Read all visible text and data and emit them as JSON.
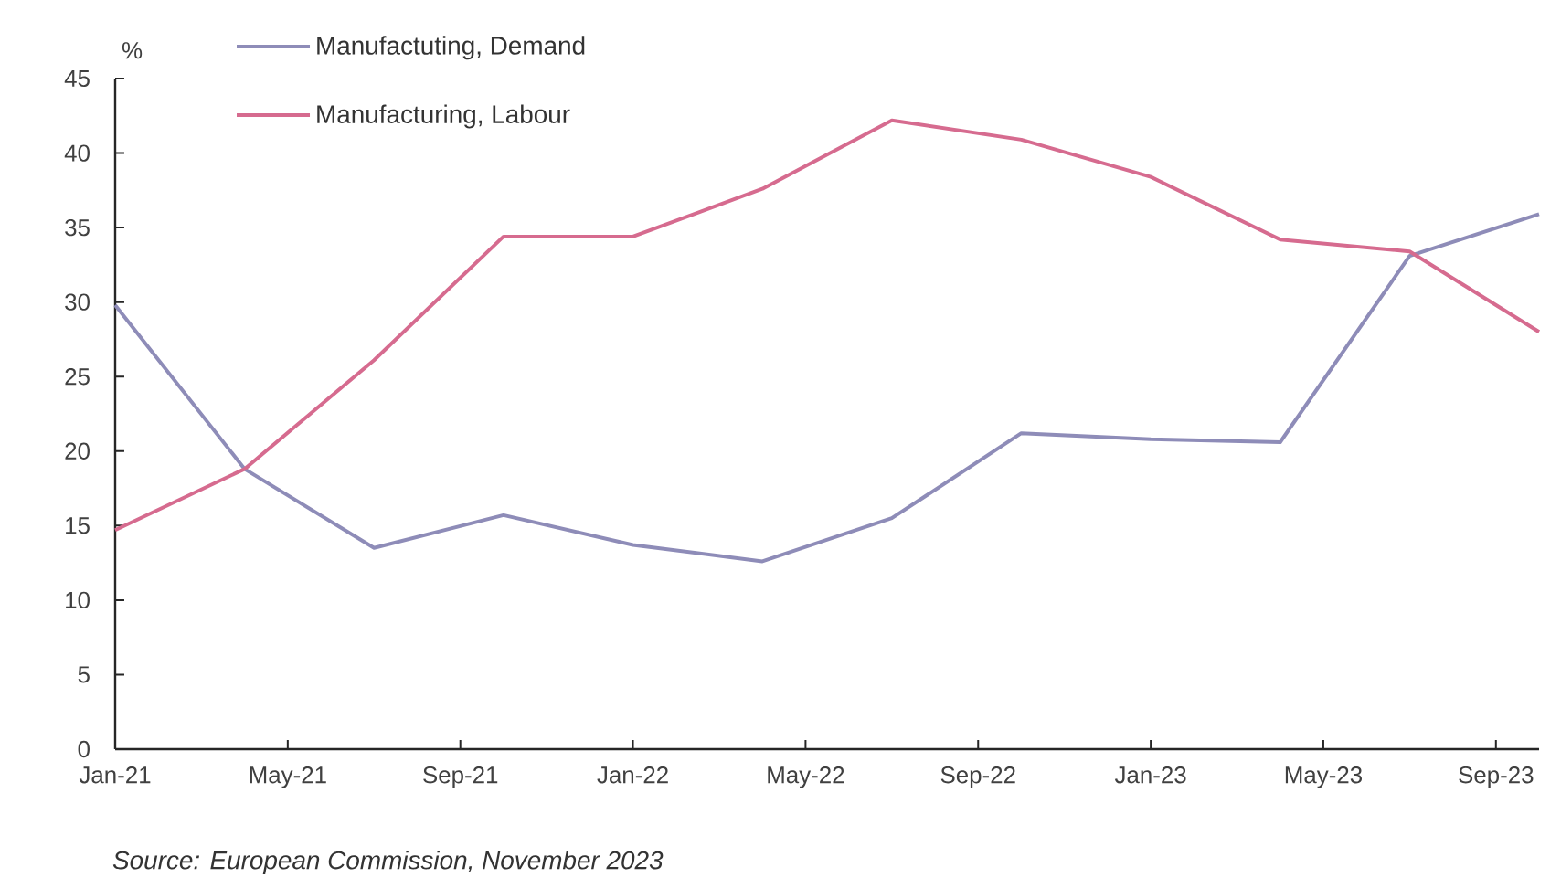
{
  "chart_data": {
    "type": "line",
    "ylabel": "%",
    "x": [
      "2021-01",
      "2021-04",
      "2021-07",
      "2021-10",
      "2022-01",
      "2022-04",
      "2022-07",
      "2022-10",
      "2023-01",
      "2023-04",
      "2023-07",
      "2023-10"
    ],
    "series": [
      {
        "name": "Manufactuting, Demand",
        "color": "#8e8cb8",
        "values": [
          29.8,
          18.8,
          13.5,
          15.7,
          13.7,
          12.6,
          15.5,
          21.2,
          20.8,
          20.6,
          33.1,
          35.9
        ]
      },
      {
        "name": "Manufacturing, Labour",
        "color": "#d66b8f",
        "values": [
          14.7,
          18.8,
          26.1,
          34.4,
          34.4,
          37.6,
          42.2,
          40.9,
          38.4,
          34.2,
          33.4,
          28.0
        ]
      }
    ],
    "xlim": [
      "2021-01",
      "2023-10"
    ],
    "xticks": [
      {
        "value": "2021-01",
        "label": "Jan-21"
      },
      {
        "value": "2021-05",
        "label": "May-21"
      },
      {
        "value": "2021-09",
        "label": "Sep-21"
      },
      {
        "value": "2022-01",
        "label": "Jan-22"
      },
      {
        "value": "2022-05",
        "label": "May-22"
      },
      {
        "value": "2022-09",
        "label": "Sep-22"
      },
      {
        "value": "2023-01",
        "label": "Jan-23"
      },
      {
        "value": "2023-05",
        "label": "May-23"
      },
      {
        "value": "2023-09",
        "label": "Sep-23"
      }
    ],
    "ylim": [
      0,
      45
    ],
    "yticks": [
      0,
      5,
      10,
      15,
      20,
      25,
      30,
      35,
      40,
      45
    ],
    "legend": "top left",
    "grid": false,
    "marker": "none",
    "line_style": "solid",
    "annotations": [
      "Source: European Commission, November 2023"
    ]
  }
}
